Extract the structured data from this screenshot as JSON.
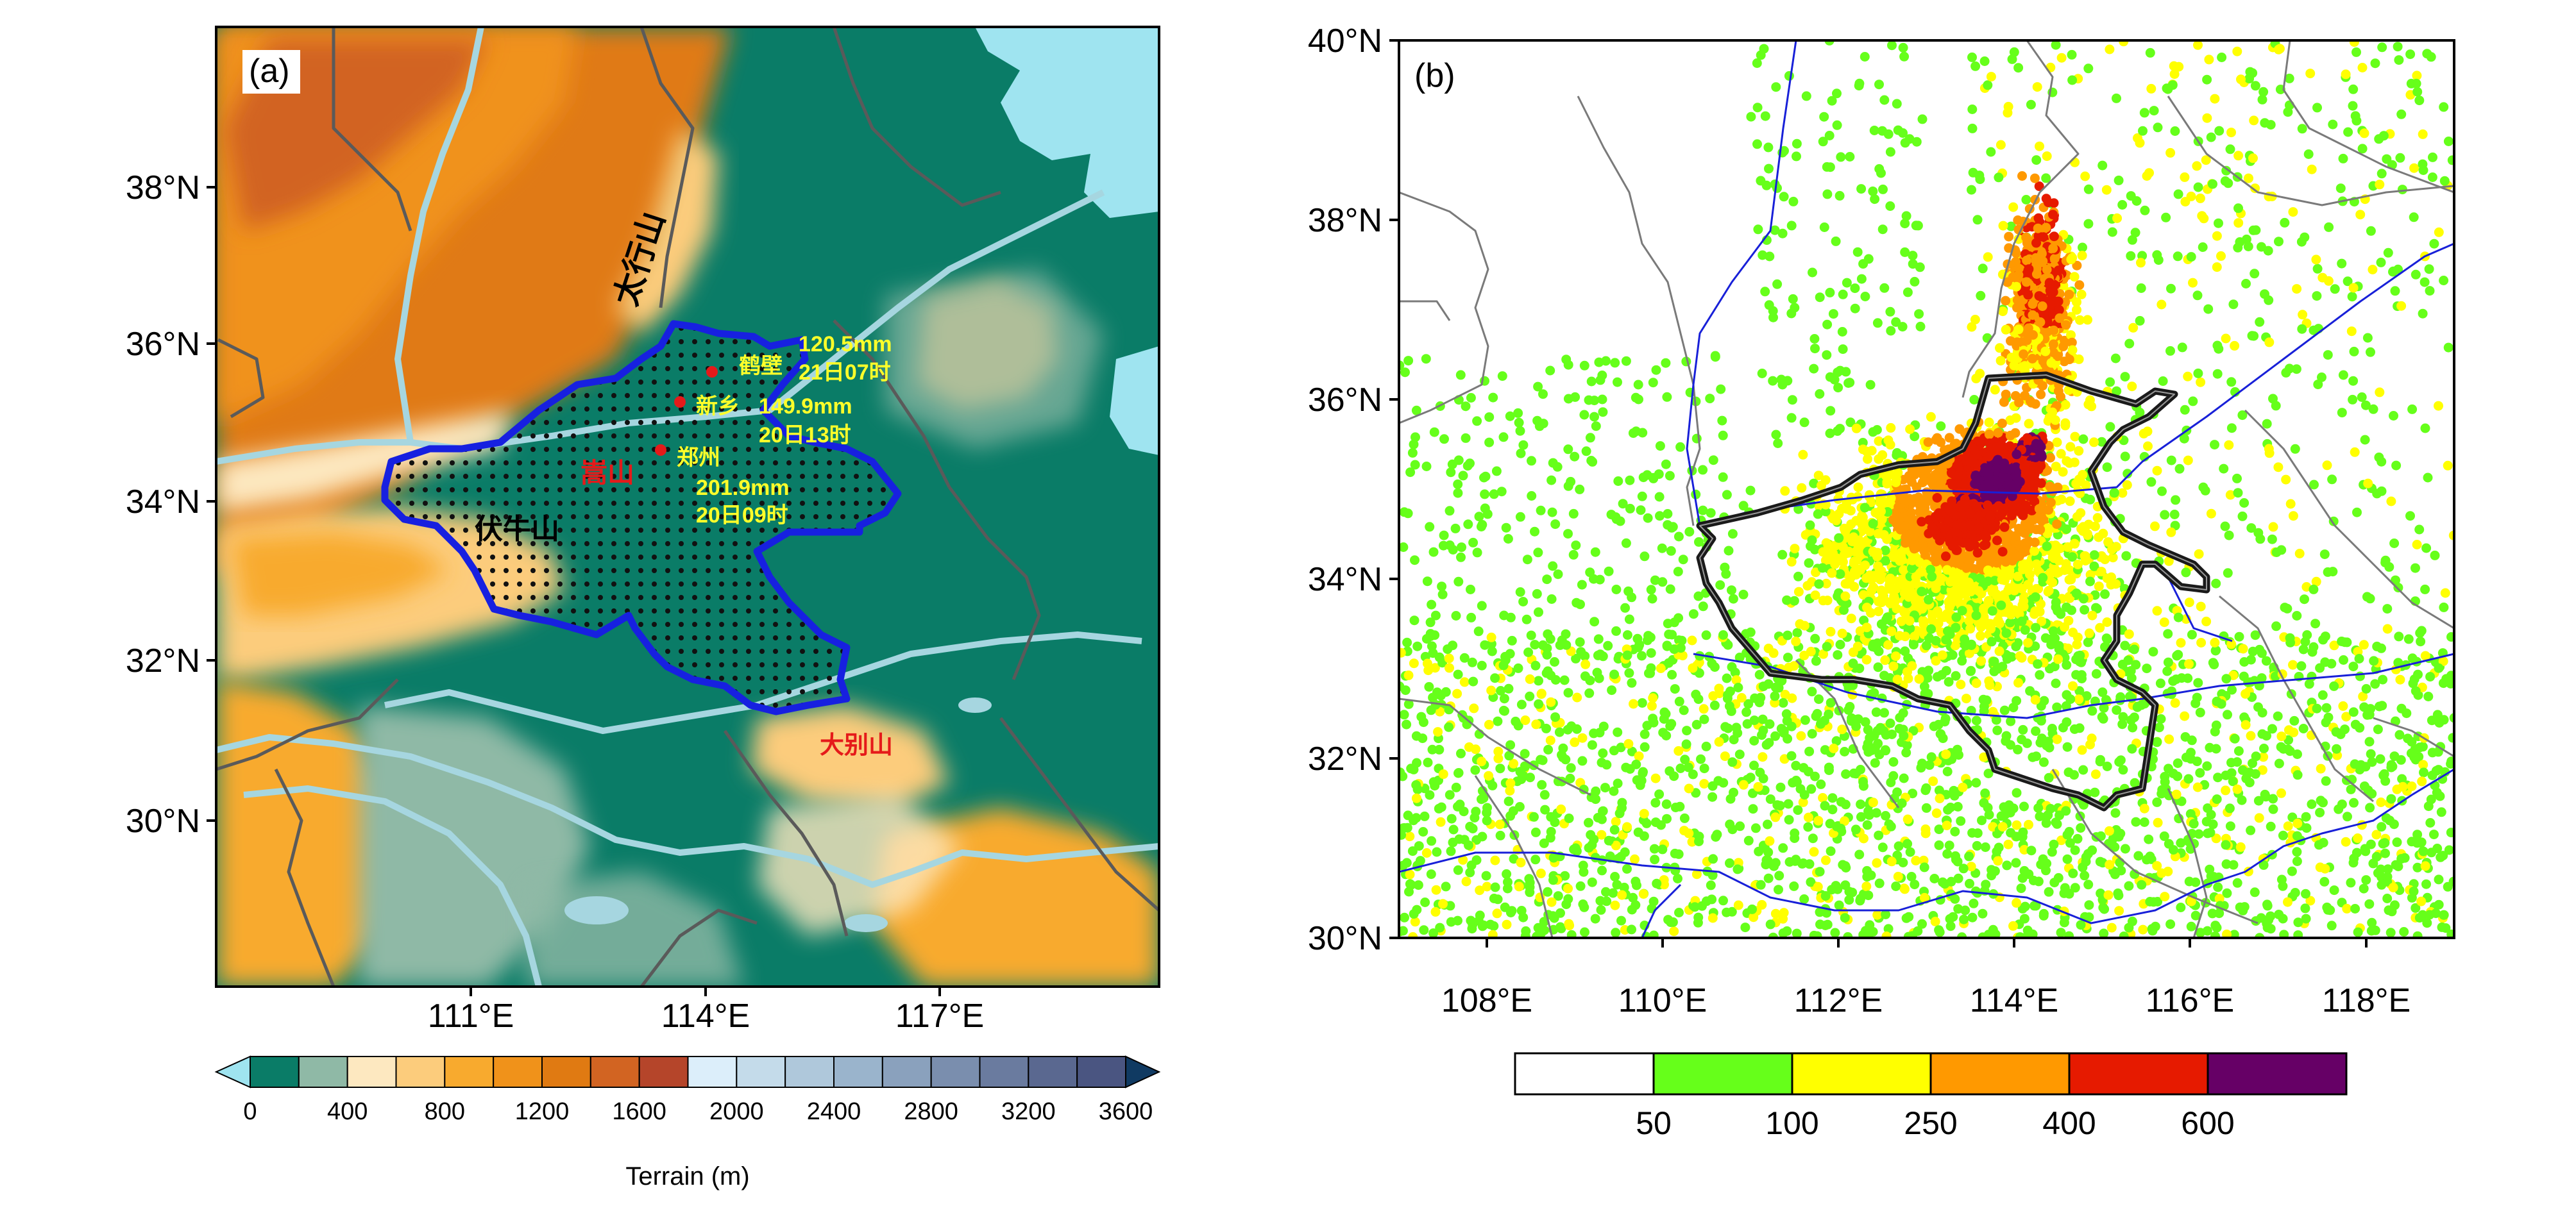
{
  "panel_a": {
    "label": "(a)",
    "lat_ticks": [
      "38°N",
      "36°N",
      "34°N",
      "32°N",
      "30°N"
    ],
    "lon_ticks": [
      "111°E",
      "114°E",
      "117°E"
    ],
    "mountains": {
      "taihang": "太行山",
      "funiu": "伏牛山",
      "songshan": "嵩山",
      "dabie": "大别山"
    },
    "stations": [
      {
        "name": "鹤壁",
        "amount": "120.5mm",
        "time": "21日07时"
      },
      {
        "name": "新乡",
        "amount": "149.9mm",
        "time": "20日13时"
      },
      {
        "name": "郑州",
        "amount": "201.9mm",
        "time": "20日09时"
      }
    ],
    "colorbar": {
      "title": "Terrain (m)",
      "tick_labels": [
        "0",
        "400",
        "800",
        "1200",
        "1600",
        "2000",
        "2400",
        "2800",
        "3200",
        "3600"
      ],
      "colors": [
        "#9fe4f0",
        "#0a7c67",
        "#8fb9a6",
        "#fde8c0",
        "#fccc7c",
        "#f8aa2e",
        "#f0921a",
        "#e07a12",
        "#d26422",
        "#b5452a",
        "#dceefa",
        "#c4dbea",
        "#afc8db",
        "#9ab4cc",
        "#8aa1bd",
        "#7a8eae",
        "#6a7b9f",
        "#5a6890",
        "#4a5581",
        "#103a62"
      ]
    },
    "colors": {
      "land_low": "#0a7c67",
      "border_province": "#5a5a5a",
      "henan_border": "#1720e0",
      "river": "#a6d6e0",
      "sea": "#9fe4f0",
      "station_text": "#ffff2a",
      "mountain_text_red": "#e51a1a"
    }
  },
  "panel_b": {
    "label": "(b)",
    "lat_ticks": [
      "40°N",
      "38°N",
      "36°N",
      "34°N",
      "32°N",
      "30°N"
    ],
    "lon_ticks": [
      "108°E",
      "110°E",
      "112°E",
      "114°E",
      "116°E",
      "118°E"
    ],
    "colorbar": {
      "tick_labels": [
        "50",
        "100",
        "250",
        "400",
        "600"
      ],
      "colors": [
        "#ffffff",
        "#66ff1a",
        "#ffff00",
        "#ff9900",
        "#e61a00",
        "#660066"
      ]
    }
  }
}
